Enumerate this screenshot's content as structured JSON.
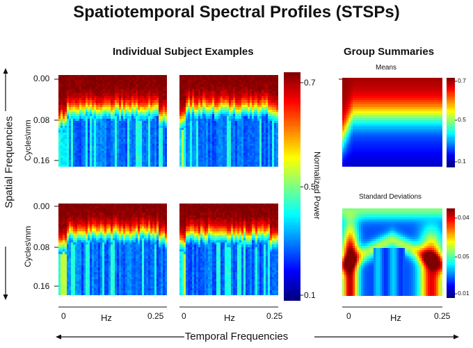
{
  "title": "Spatiotemporal Spectral Profiles (STSPs)",
  "individual_heading": "Individual Subject Examples",
  "group_heading": "Group Summaries",
  "means_label": "Means",
  "sd_label": "Standard Deviations",
  "spatial_axis_label": "Spatial Frequencies",
  "temporal_axis_label": "Temporal Frequencies",
  "ylabel": "Cycles\\mm",
  "xlabel": "Hz",
  "yticks": [
    "0.00",
    "0.08",
    "0.16"
  ],
  "xticks": [
    "0",
    "0.25"
  ],
  "colorbar_label": "Normalized Power",
  "colorbar_ticks": [
    "0.7",
    "0.5",
    "0.1"
  ],
  "means_cb_ticks": [
    "0.7",
    "0.5",
    "0.1"
  ],
  "sd_cb_ticks": [
    "0.04",
    "0.05",
    "0.01"
  ],
  "chart_data": [
    {
      "type": "heatmap",
      "name": "subject-1",
      "x": "temporal frequency (Hz)",
      "xlim": [
        0,
        0.25
      ],
      "y": "spatial frequency (cycles/mm)",
      "ylim": [
        0,
        0.16
      ],
      "value": "normalized power",
      "range": [
        0.1,
        0.7
      ],
      "pattern": "high power at low spatial frequency, band edge near 0.05-0.07 cycles/mm, low power below"
    },
    {
      "type": "heatmap",
      "name": "subject-2",
      "x": "temporal frequency (Hz)",
      "xlim": [
        0,
        0.25
      ],
      "y": "spatial frequency (cycles/mm)",
      "ylim": [
        0,
        0.16
      ],
      "value": "normalized power",
      "range": [
        0.1,
        0.7
      ],
      "pattern": "high power at low spatial frequency, band edge near 0.05 cycles/mm"
    },
    {
      "type": "heatmap",
      "name": "subject-3",
      "x": "temporal frequency (Hz)",
      "xlim": [
        0,
        0.25
      ],
      "y": "spatial frequency (cycles/mm)",
      "ylim": [
        0,
        0.16
      ],
      "value": "normalized power",
      "range": [
        0.1,
        0.7
      ],
      "pattern": "high power near 0.00-0.04 cycles/mm, mostly low power above 0.08"
    },
    {
      "type": "heatmap",
      "name": "subject-4",
      "x": "temporal frequency (Hz)",
      "xlim": [
        0,
        0.25
      ],
      "y": "spatial frequency (cycles/mm)",
      "ylim": [
        0,
        0.16
      ],
      "value": "normalized power",
      "range": [
        0.1,
        0.7
      ],
      "pattern": "high power near 0.00-0.05 cycles/mm"
    },
    {
      "type": "heatmap",
      "name": "group-means",
      "x": "temporal frequency (Hz)",
      "xlim": [
        0,
        0.25
      ],
      "y": "spatial frequency (cycles/mm)",
      "ylim": [
        0,
        0.16
      ],
      "value": "mean normalized power",
      "range": [
        0.1,
        0.7
      ],
      "pattern": "smooth falloff from 0.7 at 0.00 to 0.1 at 0.16"
    },
    {
      "type": "heatmap",
      "name": "group-sd",
      "x": "temporal frequency (Hz)",
      "xlim": [
        0,
        0.25
      ],
      "y": "spatial frequency (cycles/mm)",
      "ylim": [
        0,
        0.16
      ],
      "value": "standard deviation",
      "colorbar_ticks": [
        0.04,
        0.05,
        0.01
      ],
      "pattern": "high variability at low and high temporal frequency for mid-high spatial frequencies"
    }
  ],
  "colors": {
    "jet_low": "#00008f",
    "jet_high": "#800000"
  }
}
